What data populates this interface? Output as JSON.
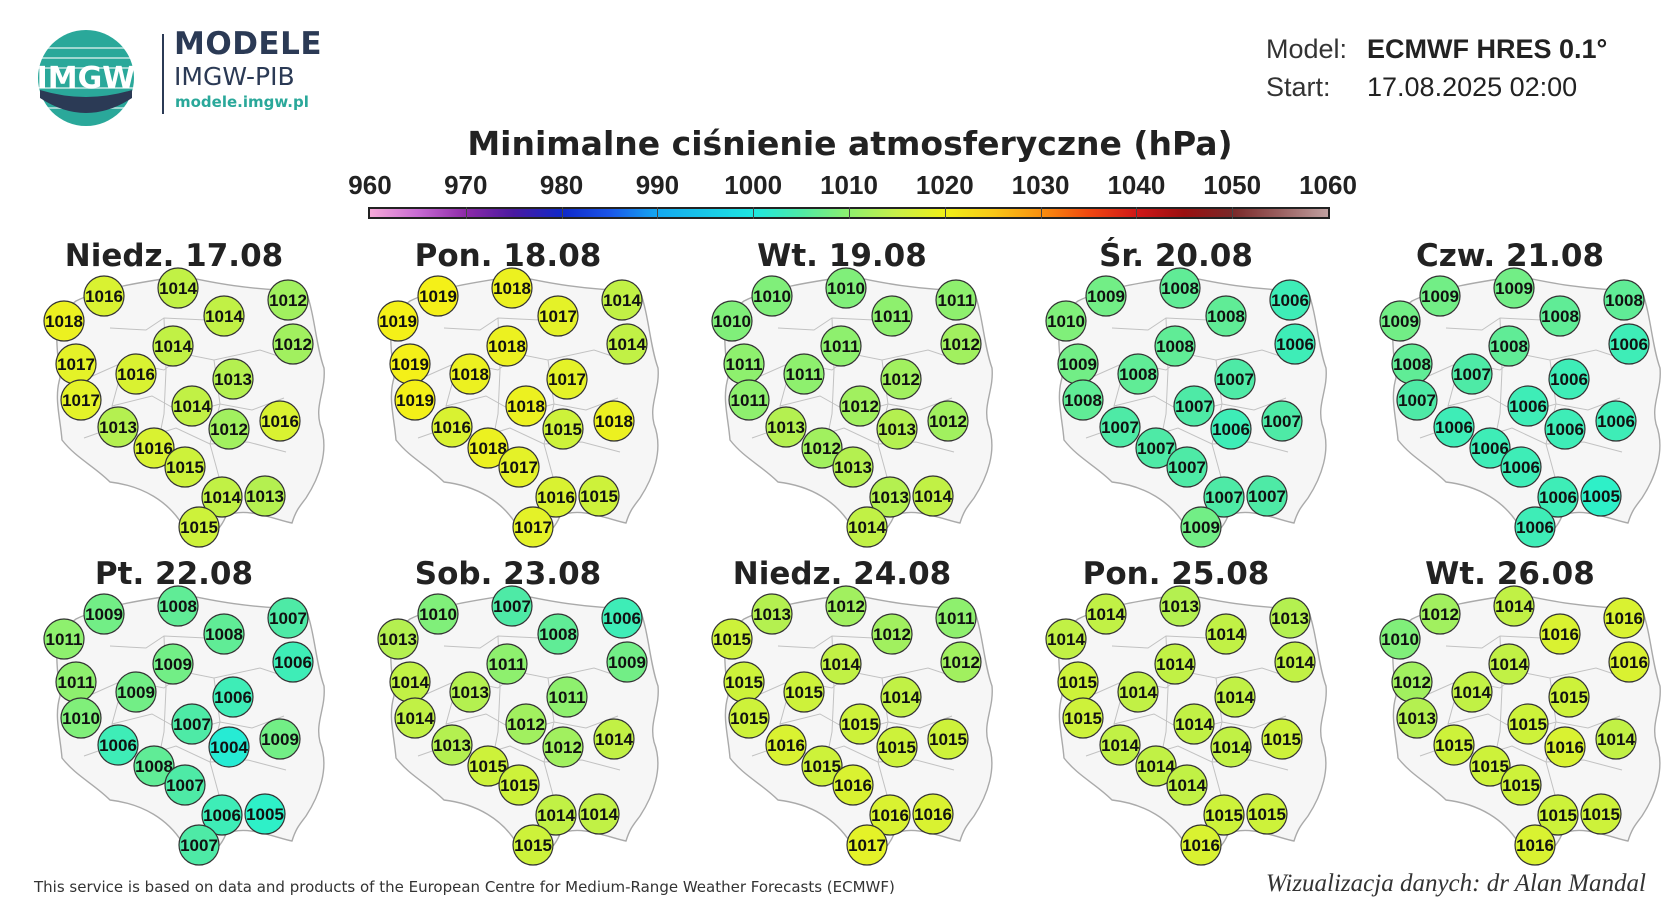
{
  "header": {
    "logo_text": "IMGW",
    "brand_title": "MODELE",
    "brand_subtitle": "IMGW-PIB",
    "brand_url": "modele.imgw.pl",
    "model_label": "Model:",
    "model_value": "ECMWF HRES 0.1°",
    "start_label": "Start:",
    "start_value": "17.08.2025 02:00"
  },
  "title": "Minimalne ciśnienie atmosferyczne (hPa)",
  "colorbar": {
    "ticks": [
      "960",
      "970",
      "980",
      "990",
      "1000",
      "1010",
      "1020",
      "1030",
      "1040",
      "1050",
      "1060"
    ],
    "min": 960,
    "max": 1060
  },
  "panels": [
    {
      "title": "Niedz. 17.08",
      "values": [
        1016,
        1014,
        1012,
        1018,
        1014,
        1012,
        1014,
        1017,
        1016,
        1013,
        1017,
        1014,
        1016,
        1013,
        1012,
        1016,
        1015,
        1014,
        1013,
        1015
      ]
    },
    {
      "title": "Pon. 18.08",
      "values": [
        1019,
        1018,
        1014,
        1019,
        1017,
        1014,
        1018,
        1019,
        1018,
        1017,
        1019,
        1018,
        1018,
        1016,
        1015,
        1018,
        1017,
        1016,
        1015,
        1017
      ]
    },
    {
      "title": "Wt. 19.08",
      "values": [
        1010,
        1010,
        1011,
        1010,
        1011,
        1012,
        1011,
        1011,
        1011,
        1012,
        1011,
        1012,
        1012,
        1013,
        1013,
        1012,
        1013,
        1013,
        1014,
        1014
      ]
    },
    {
      "title": "Śr. 20.08",
      "values": [
        1009,
        1008,
        1006,
        1010,
        1008,
        1006,
        1008,
        1009,
        1008,
        1007,
        1008,
        1007,
        1007,
        1007,
        1006,
        1007,
        1007,
        1007,
        1007,
        1009
      ]
    },
    {
      "title": "Czw. 21.08",
      "values": [
        1009,
        1009,
        1008,
        1009,
        1008,
        1006,
        1008,
        1008,
        1007,
        1006,
        1007,
        1006,
        1006,
        1006,
        1006,
        1006,
        1006,
        1006,
        1005,
        1006
      ]
    },
    {
      "title": "Pt. 22.08",
      "values": [
        1009,
        1008,
        1007,
        1011,
        1008,
        1006,
        1009,
        1011,
        1009,
        1006,
        1010,
        1007,
        1009,
        1006,
        1004,
        1008,
        1007,
        1006,
        1005,
        1007
      ]
    },
    {
      "title": "Sob. 23.08",
      "values": [
        1010,
        1007,
        1006,
        1013,
        1008,
        1009,
        1011,
        1014,
        1013,
        1011,
        1014,
        1012,
        1014,
        1013,
        1012,
        1015,
        1015,
        1014,
        1014,
        1015
      ]
    },
    {
      "title": "Niedz. 24.08",
      "values": [
        1013,
        1012,
        1011,
        1015,
        1012,
        1012,
        1014,
        1015,
        1015,
        1014,
        1015,
        1015,
        1015,
        1016,
        1015,
        1015,
        1016,
        1016,
        1016,
        1017
      ]
    },
    {
      "title": "Pon. 25.08",
      "values": [
        1014,
        1013,
        1013,
        1014,
        1014,
        1014,
        1014,
        1015,
        1014,
        1014,
        1015,
        1014,
        1015,
        1014,
        1014,
        1014,
        1014,
        1015,
        1015,
        1016
      ]
    },
    {
      "title": "Wt. 26.08",
      "values": [
        1012,
        1014,
        1016,
        1010,
        1016,
        1016,
        1014,
        1012,
        1014,
        1015,
        1013,
        1015,
        1014,
        1015,
        1016,
        1015,
        1015,
        1015,
        1015,
        1016
      ]
    }
  ],
  "footer": {
    "left": "This service is based on data and products of the European Centre for Medium-Range Weather Forecasts (ECMWF)",
    "right": "Wizualizacja danych: dr Alan Mandal"
  }
}
